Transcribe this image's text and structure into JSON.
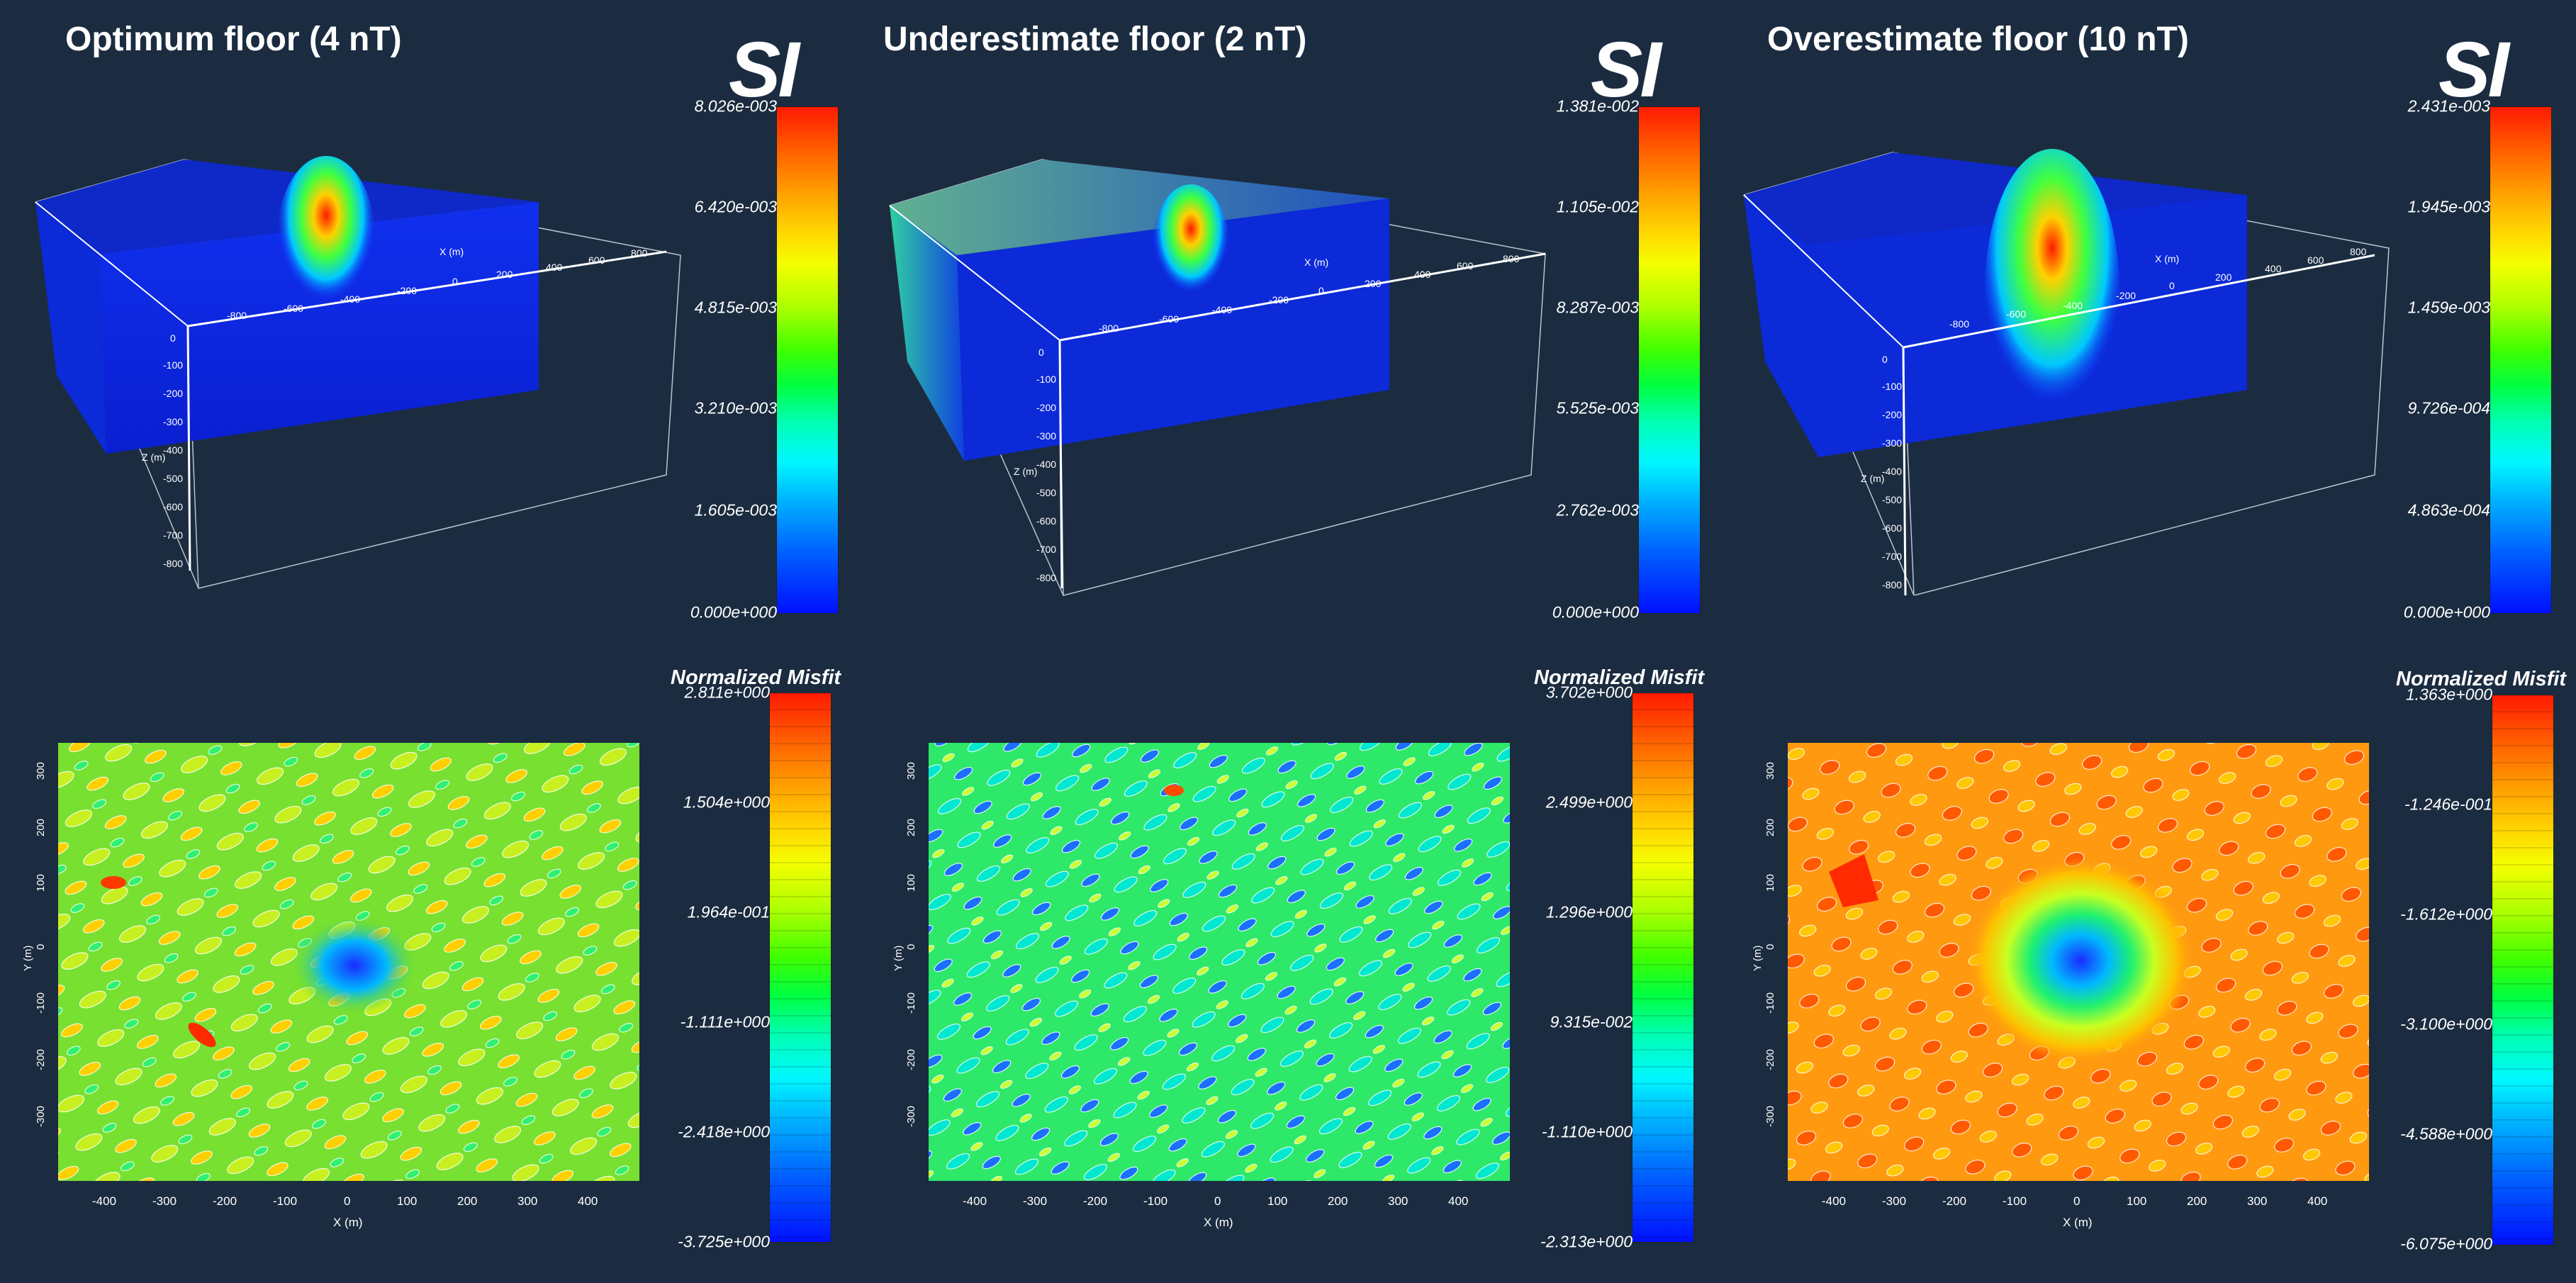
{
  "panels": [
    {
      "title": "Optimum floor (4 nT)",
      "si_label": "SI",
      "si_ticks": [
        "8.026e-003",
        "6.420e-003",
        "4.815e-003",
        "3.210e-003",
        "1.605e-003",
        "0.000e+000"
      ],
      "misfit_label": "Normalized Misfit",
      "misfit_ticks": [
        "2.811e+000",
        "1.504e+000",
        "1.964e-001",
        "-1.111e+000",
        "-2.418e+000",
        "-3.725e+000"
      ],
      "colors": {
        "map_base": "#6fe02a",
        "map_high": "#ffd200",
        "map_low": "#1a2cff"
      }
    },
    {
      "title": "Underestimate floor (2 nT)",
      "si_label": "SI",
      "si_ticks": [
        "1.381e-002",
        "1.105e-002",
        "8.287e-003",
        "5.525e-003",
        "2.762e-003",
        "0.000e+000"
      ],
      "misfit_label": "Normalized Misfit",
      "misfit_ticks": [
        "3.702e+000",
        "2.499e+000",
        "1.296e+000",
        "9.315e-002",
        "-1.110e+000",
        "-2.313e+000"
      ],
      "colors": {
        "map_base": "#2ee86a",
        "map_high": "#d8ff20",
        "map_low": "#1a3cff"
      }
    },
    {
      "title": "Overestimate floor (10 nT)",
      "si_label": "SI",
      "si_ticks": [
        "2.431e-003",
        "1.945e-003",
        "1.459e-003",
        "9.726e-004",
        "4.863e-004",
        "0.000e+000"
      ],
      "misfit_label": "Normalized Misfit",
      "misfit_ticks": [
        "1.363e+000",
        "-1.246e-001",
        "-1.612e+000",
        "-3.100e+000",
        "-4.588e+000",
        "-6.075e+000"
      ],
      "colors": {
        "map_base": "#ff9a10",
        "map_high": "#ff3a00",
        "map_low": "#1a3cff"
      }
    }
  ],
  "map_axes": {
    "x_label": "X (m)",
    "y_label": "Y (m)",
    "x_ticks": [
      "-400",
      "-300",
      "-200",
      "-100",
      "0",
      "100",
      "200",
      "300",
      "400"
    ],
    "y_ticks": [
      "300",
      "200",
      "100",
      "0",
      "-100",
      "-200",
      "-300"
    ]
  },
  "box_axes": {
    "x_label": "X (m)",
    "z_label": "Z (m)",
    "x_ticks": [
      "-800",
      "-600",
      "-400",
      "-200",
      "0",
      "200",
      "400",
      "600",
      "800"
    ],
    "z_ticks": [
      "0",
      "-100",
      "-200",
      "-300",
      "-400",
      "-500",
      "-600",
      "-700",
      "-800"
    ]
  }
}
